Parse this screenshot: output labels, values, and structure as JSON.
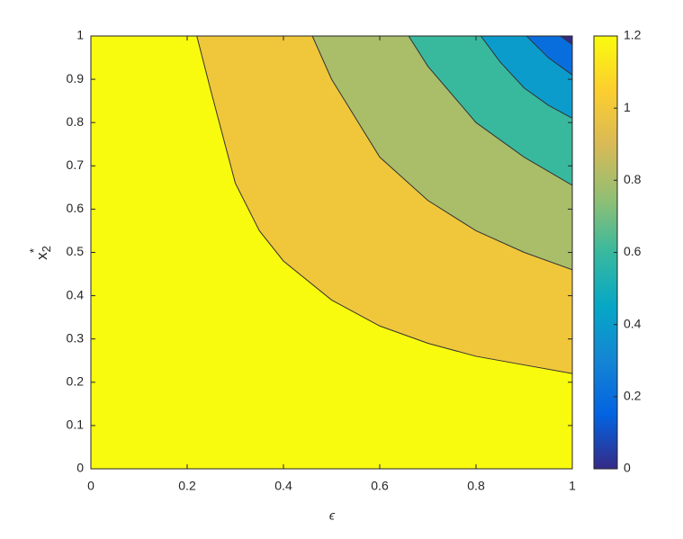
{
  "chart_data": {
    "type": "contour",
    "xlabel": "ϵ",
    "ylabel": {
      "text": "x",
      "subscript": "2",
      "superscript": "*"
    },
    "xlim": [
      0,
      1
    ],
    "xticks": [
      0,
      0.2,
      0.4,
      0.6,
      0.8,
      1
    ],
    "ylim": [
      0,
      1
    ],
    "yticks": [
      0,
      0.1,
      0.2,
      0.3,
      0.4,
      0.5,
      0.6,
      0.7,
      0.8,
      0.9,
      1
    ],
    "clim": [
      0,
      1.2
    ],
    "cticks": [
      0,
      0.2,
      0.4,
      0.6,
      0.8,
      1,
      1.2
    ],
    "colormap": [
      "#352a87",
      "#0363e1",
      "#1485d4",
      "#06a7c6",
      "#38b99e",
      "#92bf73",
      "#d9ba56",
      "#fcce2e",
      "#f9fb0e"
    ],
    "line_color": "#333333",
    "contours": [
      {
        "level": 1,
        "x": [
          0.22,
          0.25,
          0.3,
          0.35,
          0.4,
          0.5,
          0.6,
          0.7,
          0.8,
          0.9,
          1
        ],
        "y": [
          1,
          0.87,
          0.66,
          0.55,
          0.48,
          0.39,
          0.33,
          0.29,
          0.26,
          0.24,
          0.22
        ]
      },
      {
        "level": 0.8,
        "x": [
          0.46,
          0.5,
          0.6,
          0.7,
          0.8,
          0.9,
          1
        ],
        "y": [
          1,
          0.9,
          0.72,
          0.62,
          0.55,
          0.5,
          0.46
        ]
      },
      {
        "level": 0.6,
        "x": [
          0.66,
          0.7,
          0.8,
          0.9,
          1
        ],
        "y": [
          1,
          0.93,
          0.8,
          0.72,
          0.655
        ]
      },
      {
        "level": 0.4,
        "x": [
          0.81,
          0.85,
          0.9,
          0.95,
          1
        ],
        "y": [
          1,
          0.94,
          0.88,
          0.84,
          0.81
        ]
      },
      {
        "level": 0.2,
        "x": [
          0.905,
          0.95,
          1
        ],
        "y": [
          1,
          0.95,
          0.91
        ]
      },
      {
        "level": 0,
        "x": [
          0.975,
          1
        ],
        "y": [
          1,
          0.98
        ]
      }
    ]
  }
}
